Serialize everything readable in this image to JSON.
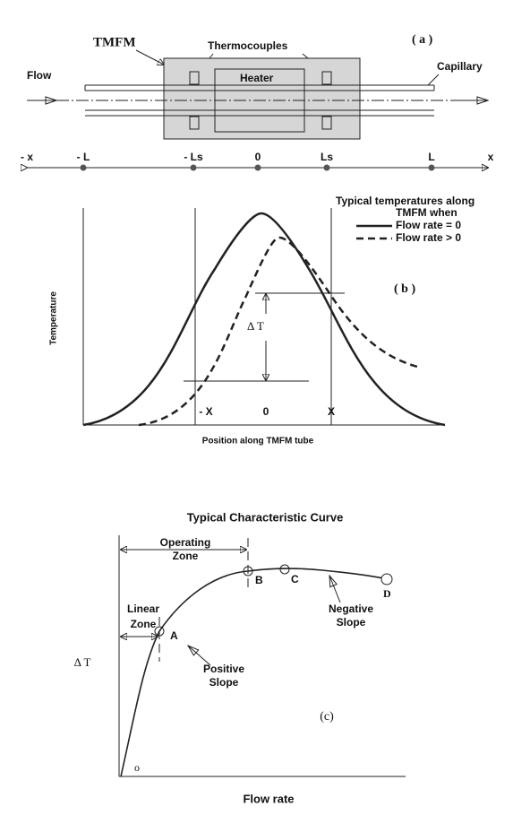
{
  "panel_a": {
    "label": "( a )",
    "tmfm": "TMFM",
    "thermocouples": "Thermocouples",
    "heater": "Heater",
    "flow": "Flow",
    "capillary": "Capillary",
    "axis_labels": [
      "- x",
      "- L",
      "- Ls",
      "0",
      "Ls",
      "L",
      "x"
    ]
  },
  "panel_b": {
    "label": "( b )",
    "legend_title": "Typical temperatures along",
    "legend_subtitle": "TMFM when",
    "legend": [
      "Flow rate = 0",
      "Flow rate > 0"
    ],
    "y_label": "Temperature",
    "x_label": "Position along TMFM tube",
    "delta": "Δ T",
    "ticks": [
      "- X",
      "0",
      "X"
    ]
  },
  "panel_c": {
    "title": "Typical Characteristic Curve",
    "label": "(c)",
    "y_label": "Δ T",
    "x_label": "Flow rate",
    "operating_zone": [
      "Operating",
      "Zone"
    ],
    "linear_zone": [
      "Linear",
      "Zone"
    ],
    "positive_slope": [
      "Positive",
      "Slope"
    ],
    "negative_slope": [
      "Negative",
      "Slope"
    ],
    "points": [
      "A",
      "B",
      "C",
      "D"
    ],
    "origin": "o"
  }
}
